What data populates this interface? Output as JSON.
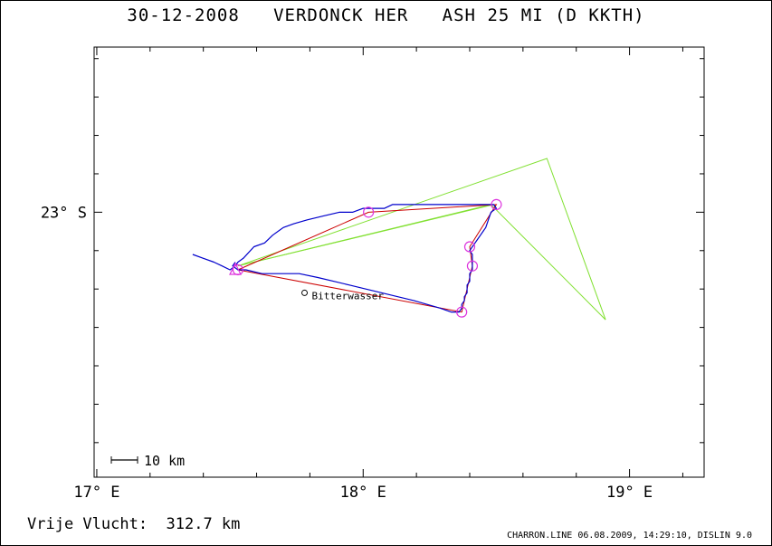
{
  "header": {
    "title": "30-12-2008   VERDONCK HER   ASH 25 MI (D KKTH)"
  },
  "footer": {
    "distance_label": "Vrije Vlucht:  312.7 km",
    "credit": "CHARRON.LINE 06.08.2009, 14:29:10, DISLIN 9.0"
  },
  "chart_data": {
    "type": "map",
    "x_range_deg_E": [
      16.99,
      19.28
    ],
    "y_range_deg_S": [
      22.57,
      23.69
    ],
    "x_ticks": [
      {
        "value": 17,
        "label": "17° E"
      },
      {
        "value": 18,
        "label": "18° E"
      },
      {
        "value": 19,
        "label": "19° E"
      }
    ],
    "y_ticks": [
      {
        "value": 23,
        "label": "23° S"
      }
    ],
    "scale_bar_label": "10 km",
    "place_label": "Bitterwasser",
    "place": {
      "lon": 17.78,
      "lat": 23.21
    },
    "colors": {
      "track": "#0000cc",
      "route": "#cc0000",
      "triangle": "#80e030",
      "turnpoint": "#dd33dd",
      "axes": "#000000"
    },
    "turnpoints": [
      {
        "lon": 17.53,
        "lat": 23.15
      },
      {
        "lon": 18.02,
        "lat": 23.0
      },
      {
        "lon": 18.5,
        "lat": 22.98
      },
      {
        "lon": 18.4,
        "lat": 23.09
      },
      {
        "lon": 18.41,
        "lat": 23.14
      },
      {
        "lon": 18.37,
        "lat": 23.26
      }
    ],
    "start_marker": {
      "lon": 17.52,
      "lat": 23.15
    },
    "route_line": [
      [
        17.53,
        23.15
      ],
      [
        18.02,
        23.0
      ],
      [
        18.5,
        22.98
      ],
      [
        18.4,
        23.09
      ],
      [
        18.41,
        23.14
      ],
      [
        18.37,
        23.26
      ],
      [
        17.53,
        23.15
      ]
    ],
    "triangle_lines": [
      [
        [
          17.53,
          23.14
        ],
        [
          18.69,
          22.86
        ],
        [
          18.91,
          23.28
        ],
        [
          18.48,
          22.98
        ],
        [
          17.53,
          23.14
        ]
      ],
      [
        [
          17.53,
          23.14
        ],
        [
          18.49,
          22.98
        ]
      ]
    ],
    "track": [
      [
        17.36,
        23.11
      ],
      [
        17.4,
        23.12
      ],
      [
        17.44,
        23.13
      ],
      [
        17.47,
        23.14
      ],
      [
        17.5,
        23.15
      ],
      [
        17.52,
        23.14
      ],
      [
        17.53,
        23.13
      ],
      [
        17.55,
        23.12
      ],
      [
        17.59,
        23.09
      ],
      [
        17.63,
        23.08
      ],
      [
        17.66,
        23.06
      ],
      [
        17.7,
        23.04
      ],
      [
        17.74,
        23.03
      ],
      [
        17.79,
        23.02
      ],
      [
        17.85,
        23.01
      ],
      [
        17.91,
        23.0
      ],
      [
        17.96,
        23.0
      ],
      [
        18.0,
        22.99
      ],
      [
        18.04,
        22.99
      ],
      [
        18.08,
        22.99
      ],
      [
        18.11,
        22.98
      ],
      [
        18.16,
        22.98
      ],
      [
        18.21,
        22.98
      ],
      [
        18.28,
        22.98
      ],
      [
        18.36,
        22.98
      ],
      [
        18.42,
        22.98
      ],
      [
        18.46,
        22.98
      ],
      [
        18.49,
        22.98
      ],
      [
        18.5,
        22.99
      ],
      [
        18.48,
        23.0
      ],
      [
        18.47,
        23.02
      ],
      [
        18.46,
        23.04
      ],
      [
        18.45,
        23.05
      ],
      [
        18.44,
        23.06
      ],
      [
        18.43,
        23.07
      ],
      [
        18.42,
        23.08
      ],
      [
        18.41,
        23.09
      ],
      [
        18.4,
        23.1
      ],
      [
        18.41,
        23.11
      ],
      [
        18.41,
        23.12
      ],
      [
        18.41,
        23.13
      ],
      [
        18.41,
        23.14
      ],
      [
        18.41,
        23.15
      ],
      [
        18.4,
        23.16
      ],
      [
        18.4,
        23.17
      ],
      [
        18.4,
        23.18
      ],
      [
        18.39,
        23.19
      ],
      [
        18.39,
        23.2
      ],
      [
        18.39,
        23.21
      ],
      [
        18.38,
        23.22
      ],
      [
        18.38,
        23.23
      ],
      [
        18.37,
        23.24
      ],
      [
        18.37,
        23.25
      ],
      [
        18.36,
        23.26
      ],
      [
        18.33,
        23.26
      ],
      [
        18.29,
        23.25
      ],
      [
        18.24,
        23.24
      ],
      [
        18.19,
        23.23
      ],
      [
        18.13,
        23.22
      ],
      [
        18.07,
        23.21
      ],
      [
        18.01,
        23.2
      ],
      [
        17.95,
        23.19
      ],
      [
        17.89,
        23.18
      ],
      [
        17.83,
        23.17
      ],
      [
        17.76,
        23.16
      ],
      [
        17.69,
        23.16
      ],
      [
        17.62,
        23.16
      ],
      [
        17.56,
        23.15
      ],
      [
        17.53,
        23.15
      ],
      [
        17.51,
        23.14
      ],
      [
        17.52,
        23.13
      ]
    ]
  }
}
